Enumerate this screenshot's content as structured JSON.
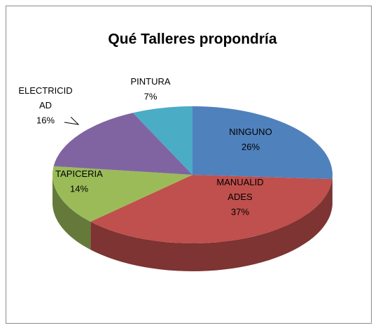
{
  "chart_data": {
    "type": "pie",
    "title": "Qué Talleres propondría",
    "categories": [
      "NINGUNO",
      "MANUALIDADES",
      "TAPICERIA",
      "ELECTRICIDAD",
      "PINTURA"
    ],
    "values": [
      26,
      37,
      14,
      16,
      7
    ],
    "value_labels": [
      "26%",
      "37%",
      "14%",
      "16%",
      "7%"
    ],
    "colors": [
      "#4f81bd",
      "#c0504d",
      "#9bbb59",
      "#8064a2",
      "#4bacc6"
    ]
  }
}
